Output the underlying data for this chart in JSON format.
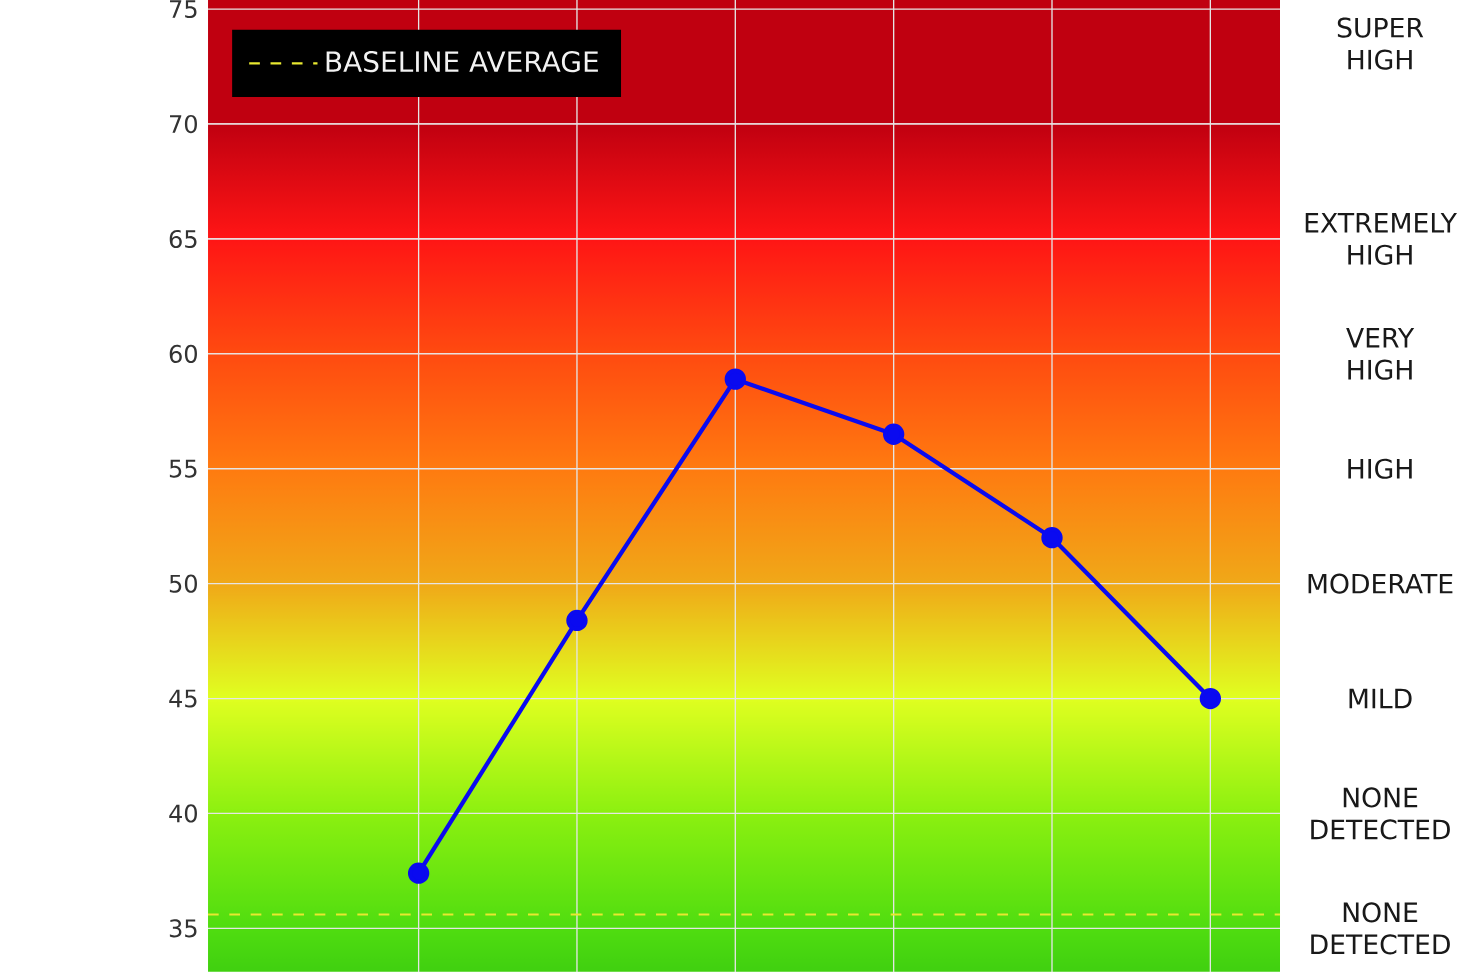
{
  "chart_data": {
    "type": "line",
    "categories": [
      null,
      null,
      null,
      null,
      null,
      null
    ],
    "series": [
      {
        "color": "#0a0af0",
        "values": [
          37.4,
          48.4,
          58.9,
          56.5,
          52.0,
          45.0
        ]
      }
    ],
    "marker": "circle",
    "line_style": "solid",
    "ylim": [
      33.1,
      75.4
    ],
    "yticks": [
      35,
      40,
      45,
      50,
      55,
      60,
      65,
      70,
      75
    ],
    "annotations": [
      "SUPER HIGH",
      "EXTREMELY HIGH",
      "VERY HIGH",
      "HIGH",
      "MODERATE",
      "MILD",
      "NONE DETECTED",
      "NONE DETECTED"
    ],
    "bands": [
      {
        "axis": "y",
        "from": 33.1,
        "to": 35,
        "color": "#40d010"
      },
      {
        "axis": "y",
        "from": 35,
        "to": 40,
        "color": "#50dd10"
      },
      {
        "axis": "y",
        "from": 40,
        "to": 45,
        "color": "#8cf010"
      },
      {
        "axis": "y",
        "from": 45,
        "to": 50,
        "color": "#e0ff20"
      },
      {
        "axis": "y",
        "from": 50,
        "to": 55,
        "color": "#f0a818"
      },
      {
        "axis": "y",
        "from": 55,
        "to": 60,
        "color": "#ff7a10"
      },
      {
        "axis": "y",
        "from": 60,
        "to": 65,
        "color": "#ff4a10"
      },
      {
        "axis": "y",
        "from": 65,
        "to": 70,
        "color": "#ff1515"
      },
      {
        "axis": "y",
        "from": 70,
        "to": 75.4,
        "color": "#c00010"
      }
    ],
    "ref_lines": [
      {
        "axis": "y",
        "value": 35.6,
        "label": "BASELINE AVERAGE",
        "color": "#e8e830",
        "line_style": "dashed"
      }
    ],
    "grid": true,
    "legend": "top left"
  }
}
